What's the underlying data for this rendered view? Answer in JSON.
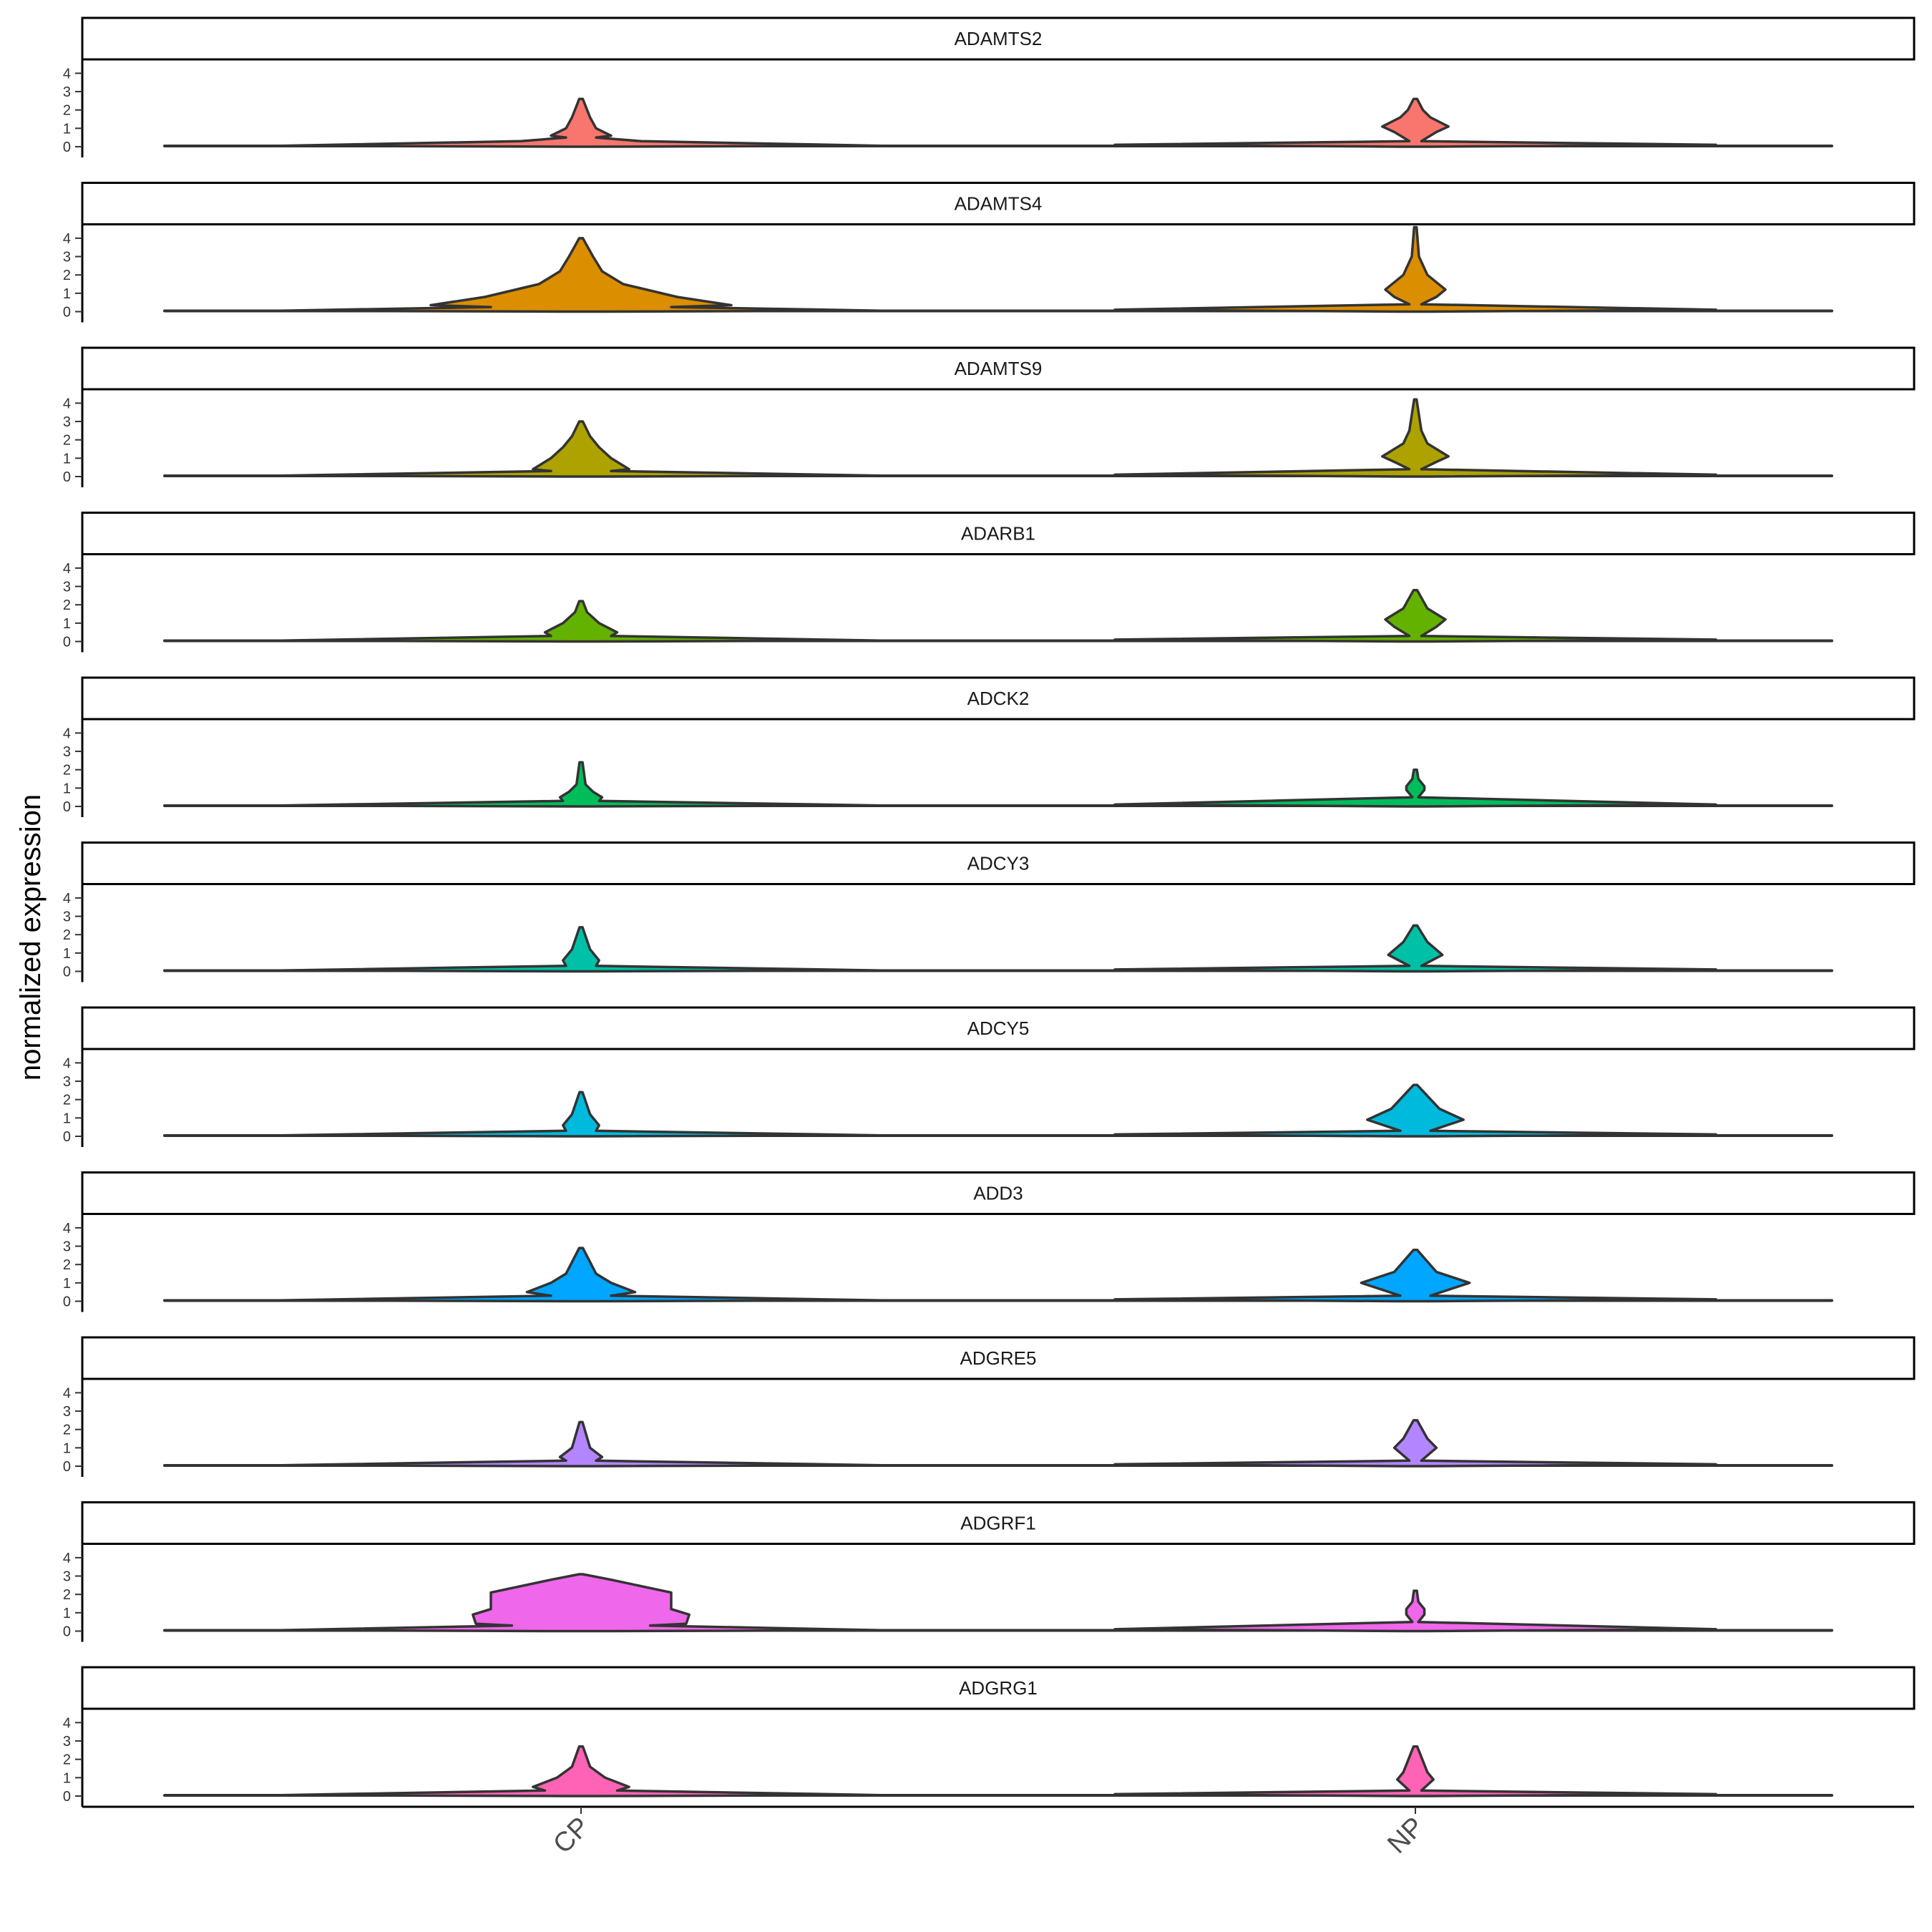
{
  "chart_data": {
    "type": "violin",
    "ylabel": "normalized expression",
    "xlabel": "",
    "categories": [
      "CP",
      "NP"
    ],
    "y_ticks": [
      "0",
      "1",
      "2",
      "3",
      "4"
    ],
    "ylim": [
      0,
      4.6
    ],
    "facets": [
      {
        "gene": "ADAMTS2",
        "color": "#F8766D",
        "violins": [
          {
            "group": "CP",
            "max": 2.6,
            "profile": [
              [
                0,
                0.05
              ],
              [
                0.05,
                1.0
              ],
              [
                0.3,
                0.2
              ],
              [
                0.5,
                0.05
              ],
              [
                0.6,
                0.1
              ],
              [
                1.0,
                0.05
              ],
              [
                1.6,
                0.03
              ],
              [
                2.6,
                0.006
              ]
            ]
          },
          {
            "group": "NP",
            "max": 2.6,
            "profile": [
              [
                0,
                0.05
              ],
              [
                0.1,
                1.0
              ],
              [
                0.3,
                0.02
              ],
              [
                0.8,
                0.07
              ],
              [
                1.1,
                0.11
              ],
              [
                1.6,
                0.05
              ],
              [
                2.0,
                0.025
              ],
              [
                2.6,
                0.006
              ]
            ]
          }
        ]
      },
      {
        "gene": "ADAMTS4",
        "color": "#DB8E00",
        "violins": [
          {
            "group": "CP",
            "max": 4.0,
            "profile": [
              [
                0,
                0.06
              ],
              [
                0.05,
                1.0
              ],
              [
                0.25,
                0.3
              ],
              [
                0.35,
                0.5
              ],
              [
                0.8,
                0.32
              ],
              [
                1.5,
                0.14
              ],
              [
                2.2,
                0.07
              ],
              [
                3.0,
                0.04
              ],
              [
                4.0,
                0.006
              ]
            ]
          },
          {
            "group": "NP",
            "max": 4.6,
            "profile": [
              [
                0,
                0.05
              ],
              [
                0.1,
                1.0
              ],
              [
                0.4,
                0.02
              ],
              [
                0.8,
                0.07
              ],
              [
                1.2,
                0.1
              ],
              [
                2.0,
                0.04
              ],
              [
                3.0,
                0.012
              ],
              [
                4.6,
                0.004
              ]
            ]
          }
        ]
      },
      {
        "gene": "ADAMTS9",
        "color": "#AEA200",
        "violins": [
          {
            "group": "CP",
            "max": 3.0,
            "profile": [
              [
                0,
                0.06
              ],
              [
                0.05,
                1.0
              ],
              [
                0.3,
                0.1
              ],
              [
                0.4,
                0.16
              ],
              [
                1.0,
                0.1
              ],
              [
                1.6,
                0.06
              ],
              [
                2.2,
                0.03
              ],
              [
                3.0,
                0.006
              ]
            ]
          },
          {
            "group": "NP",
            "max": 4.2,
            "profile": [
              [
                0,
                0.05
              ],
              [
                0.1,
                1.0
              ],
              [
                0.4,
                0.02
              ],
              [
                0.8,
                0.07
              ],
              [
                1.1,
                0.11
              ],
              [
                1.8,
                0.04
              ],
              [
                2.5,
                0.02
              ],
              [
                4.2,
                0.004
              ]
            ]
          }
        ]
      },
      {
        "gene": "ADARB1",
        "color": "#64B200",
        "violins": [
          {
            "group": "CP",
            "max": 2.2,
            "profile": [
              [
                0,
                0.05
              ],
              [
                0.05,
                1.0
              ],
              [
                0.3,
                0.1
              ],
              [
                0.5,
                0.12
              ],
              [
                1.0,
                0.06
              ],
              [
                1.6,
                0.02
              ],
              [
                2.2,
                0.006
              ]
            ]
          },
          {
            "group": "NP",
            "max": 2.8,
            "profile": [
              [
                0,
                0.05
              ],
              [
                0.1,
                1.0
              ],
              [
                0.3,
                0.02
              ],
              [
                0.8,
                0.07
              ],
              [
                1.2,
                0.1
              ],
              [
                1.8,
                0.04
              ],
              [
                2.8,
                0.006
              ]
            ]
          }
        ]
      },
      {
        "gene": "ADCK2",
        "color": "#00BD5C",
        "violins": [
          {
            "group": "CP",
            "max": 2.4,
            "profile": [
              [
                0,
                0.03
              ],
              [
                0.05,
                1.0
              ],
              [
                0.3,
                0.06
              ],
              [
                0.5,
                0.07
              ],
              [
                0.8,
                0.04
              ],
              [
                1.2,
                0.015
              ],
              [
                2.4,
                0.005
              ]
            ]
          },
          {
            "group": "NP",
            "max": 2.0,
            "profile": [
              [
                0,
                0.03
              ],
              [
                0.1,
                1.0
              ],
              [
                0.5,
                0.01
              ],
              [
                0.9,
                0.03
              ],
              [
                1.1,
                0.03
              ],
              [
                1.5,
                0.01
              ],
              [
                2.0,
                0.005
              ]
            ]
          }
        ]
      },
      {
        "gene": "ADCY3",
        "color": "#00C1A7",
        "violins": [
          {
            "group": "CP",
            "max": 2.4,
            "profile": [
              [
                0,
                0.04
              ],
              [
                0.05,
                1.0
              ],
              [
                0.3,
                0.05
              ],
              [
                0.6,
                0.06
              ],
              [
                1.2,
                0.03
              ],
              [
                2.4,
                0.005
              ]
            ]
          },
          {
            "group": "NP",
            "max": 2.5,
            "profile": [
              [
                0,
                0.05
              ],
              [
                0.1,
                1.0
              ],
              [
                0.3,
                0.02
              ],
              [
                0.9,
                0.09
              ],
              [
                1.6,
                0.04
              ],
              [
                2.5,
                0.006
              ]
            ]
          }
        ]
      },
      {
        "gene": "ADCY5",
        "color": "#00BADE",
        "violins": [
          {
            "group": "CP",
            "max": 2.4,
            "profile": [
              [
                0,
                0.04
              ],
              [
                0.05,
                1.0
              ],
              [
                0.3,
                0.05
              ],
              [
                0.6,
                0.06
              ],
              [
                1.2,
                0.03
              ],
              [
                2.4,
                0.005
              ]
            ]
          },
          {
            "group": "NP",
            "max": 2.8,
            "profile": [
              [
                0,
                0.06
              ],
              [
                0.1,
                1.0
              ],
              [
                0.3,
                0.05
              ],
              [
                0.9,
                0.16
              ],
              [
                1.5,
                0.08
              ],
              [
                2.8,
                0.006
              ]
            ]
          }
        ]
      },
      {
        "gene": "ADD3",
        "color": "#00A6FF",
        "violins": [
          {
            "group": "CP",
            "max": 2.9,
            "profile": [
              [
                0,
                0.05
              ],
              [
                0.05,
                1.0
              ],
              [
                0.3,
                0.1
              ],
              [
                0.5,
                0.18
              ],
              [
                1.0,
                0.1
              ],
              [
                1.5,
                0.05
              ],
              [
                2.9,
                0.006
              ]
            ]
          },
          {
            "group": "NP",
            "max": 2.8,
            "profile": [
              [
                0,
                0.06
              ],
              [
                0.1,
                1.0
              ],
              [
                0.3,
                0.05
              ],
              [
                1.0,
                0.18
              ],
              [
                1.6,
                0.07
              ],
              [
                2.8,
                0.006
              ]
            ]
          }
        ]
      },
      {
        "gene": "ADGRE5",
        "color": "#B385FF",
        "violins": [
          {
            "group": "CP",
            "max": 2.4,
            "profile": [
              [
                0,
                0.04
              ],
              [
                0.05,
                1.0
              ],
              [
                0.3,
                0.05
              ],
              [
                0.5,
                0.07
              ],
              [
                1.0,
                0.03
              ],
              [
                2.4,
                0.005
              ]
            ]
          },
          {
            "group": "NP",
            "max": 2.5,
            "profile": [
              [
                0,
                0.05
              ],
              [
                0.1,
                1.0
              ],
              [
                0.3,
                0.02
              ],
              [
                1.0,
                0.07
              ],
              [
                1.5,
                0.04
              ],
              [
                2.5,
                0.006
              ]
            ]
          }
        ]
      },
      {
        "gene": "ADGRF1",
        "color": "#EF67EB",
        "violins": [
          {
            "group": "CP",
            "max": 3.1,
            "profile": [
              [
                0,
                0.1
              ],
              [
                0.05,
                1.0
              ],
              [
                0.3,
                0.23
              ],
              [
                0.4,
                0.35
              ],
              [
                0.9,
                0.36
              ],
              [
                1.2,
                0.3
              ],
              [
                2.1,
                0.3
              ],
              [
                2.8,
                0.1
              ],
              [
                3.1,
                0.006
              ]
            ]
          },
          {
            "group": "NP",
            "max": 2.2,
            "profile": [
              [
                0,
                0.03
              ],
              [
                0.1,
                1.0
              ],
              [
                0.5,
                0.01
              ],
              [
                0.9,
                0.03
              ],
              [
                1.2,
                0.03
              ],
              [
                1.6,
                0.01
              ],
              [
                2.2,
                0.005
              ]
            ]
          }
        ]
      },
      {
        "gene": "ADGRG1",
        "color": "#FF63B6",
        "violins": [
          {
            "group": "CP",
            "max": 2.7,
            "profile": [
              [
                0,
                0.05
              ],
              [
                0.05,
                1.0
              ],
              [
                0.3,
                0.12
              ],
              [
                0.5,
                0.16
              ],
              [
                1.0,
                0.08
              ],
              [
                1.6,
                0.03
              ],
              [
                2.7,
                0.006
              ]
            ]
          },
          {
            "group": "NP",
            "max": 2.7,
            "profile": [
              [
                0,
                0.05
              ],
              [
                0.1,
                1.0
              ],
              [
                0.3,
                0.02
              ],
              [
                0.9,
                0.06
              ],
              [
                1.3,
                0.04
              ],
              [
                2.7,
                0.006
              ]
            ]
          }
        ]
      }
    ]
  }
}
